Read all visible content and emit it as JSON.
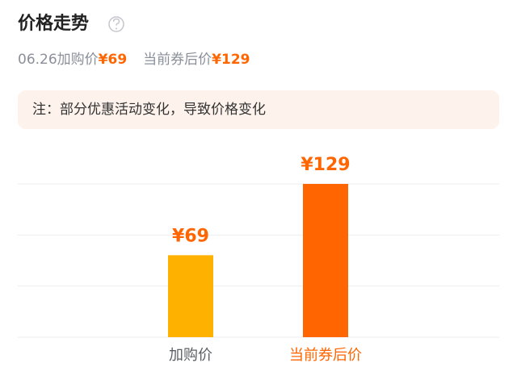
{
  "header": {
    "title": "价格走势",
    "summary": [
      {
        "label": "06.26加购价",
        "price": "¥69"
      },
      {
        "label": "当前券后价",
        "price": "¥129"
      }
    ]
  },
  "note": "注：部分优惠活动变化，导致价格变化",
  "chart_data": {
    "type": "bar",
    "categories": [
      "加购价",
      "当前券后价"
    ],
    "values": [
      69,
      129
    ],
    "value_labels": [
      "¥69",
      "¥129"
    ],
    "colors": [
      "#ffb100",
      "#ff6500"
    ],
    "label_colors": [
      "#5a5f66",
      "#ff6500"
    ],
    "ylim": [
      0,
      129
    ],
    "grid": true
  }
}
